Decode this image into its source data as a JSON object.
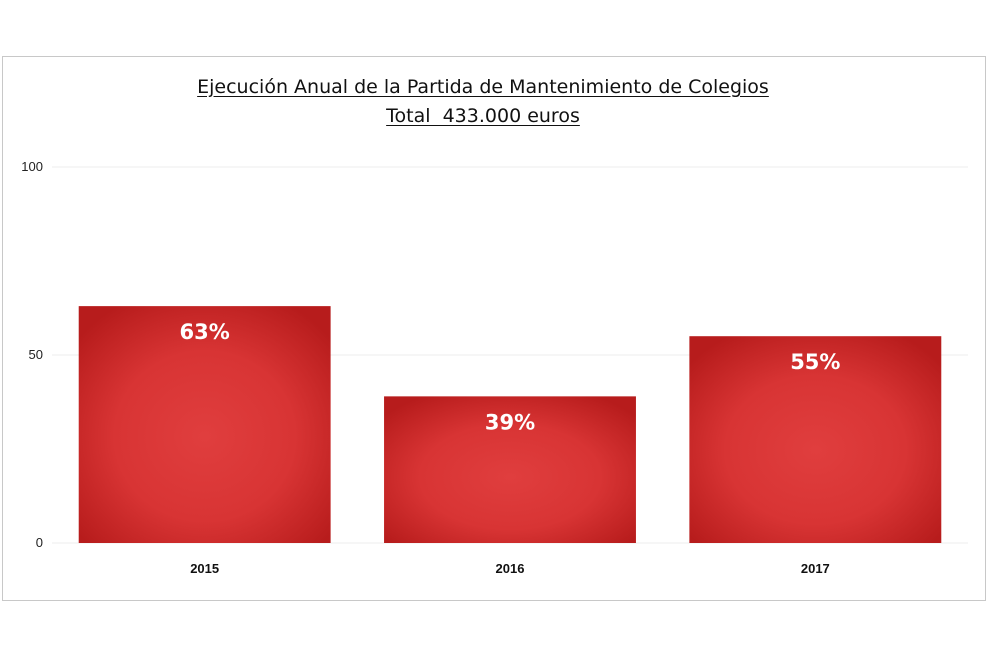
{
  "chart_data": {
    "type": "bar",
    "title": "Ejecución Anual de la Partida de Mantenimiento de Colegios",
    "subtitle": "Total  433.000 euros",
    "categories": [
      "2015",
      "2016",
      "2017"
    ],
    "values": [
      63,
      39,
      55
    ],
    "data_labels": [
      "63%",
      "39%",
      "55%"
    ],
    "y_ticks": [
      "0",
      "50",
      "100"
    ],
    "ylim": [
      0,
      100
    ],
    "xlabel": "",
    "ylabel": "",
    "grid": true,
    "legend": "none",
    "colors": {
      "bar_edge": "#b71c1c",
      "bar_center": "#e03e3e",
      "label": "#ffffff"
    }
  }
}
